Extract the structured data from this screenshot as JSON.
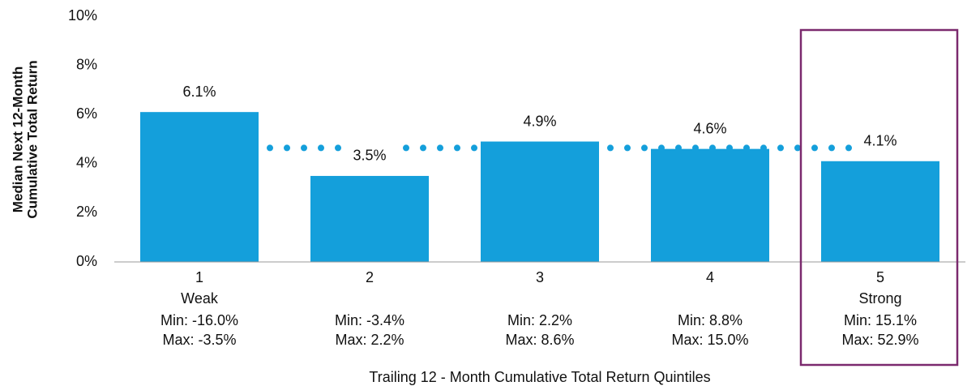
{
  "chart_data": {
    "type": "bar",
    "ylabel": [
      "Median Next 12-Month",
      "Cumulative Total Return"
    ],
    "xlabel": "Trailing 12 - Month Cumulative Total Return Quintiles",
    "categories": [
      "1",
      "2",
      "3",
      "4",
      "5"
    ],
    "sublabels": [
      "Weak",
      null,
      null,
      null,
      "Strong"
    ],
    "min_labels": [
      "Min: -16.0%",
      "Min: -3.4%",
      "Min: 2.2%",
      "Min: 8.8%",
      "Min: 15.1%"
    ],
    "max_labels": [
      "Max: -3.5%",
      "Max: 2.2%",
      "Max: 8.6%",
      "Max: 15.0%",
      "Max: 52.9%"
    ],
    "values": [
      6.1,
      3.5,
      4.9,
      4.6,
      4.1
    ],
    "value_labels": [
      "6.1%",
      "3.5%",
      "4.9%",
      "4.6%",
      "4.1%"
    ],
    "color": "#149fdb",
    "reference_line": {
      "value": 4.64,
      "color": "#149fdb"
    },
    "highlight_color": "#7b2a6e",
    "ylim": [
      0,
      10
    ],
    "yticks": [
      {
        "value": 0,
        "label": "0%"
      },
      {
        "value": 2,
        "label": "2%"
      },
      {
        "value": 4,
        "label": "4%"
      },
      {
        "value": 6,
        "label": "6%"
      },
      {
        "value": 8,
        "label": "8%"
      },
      {
        "value": 10,
        "label": "10%"
      }
    ],
    "grid": false
  }
}
